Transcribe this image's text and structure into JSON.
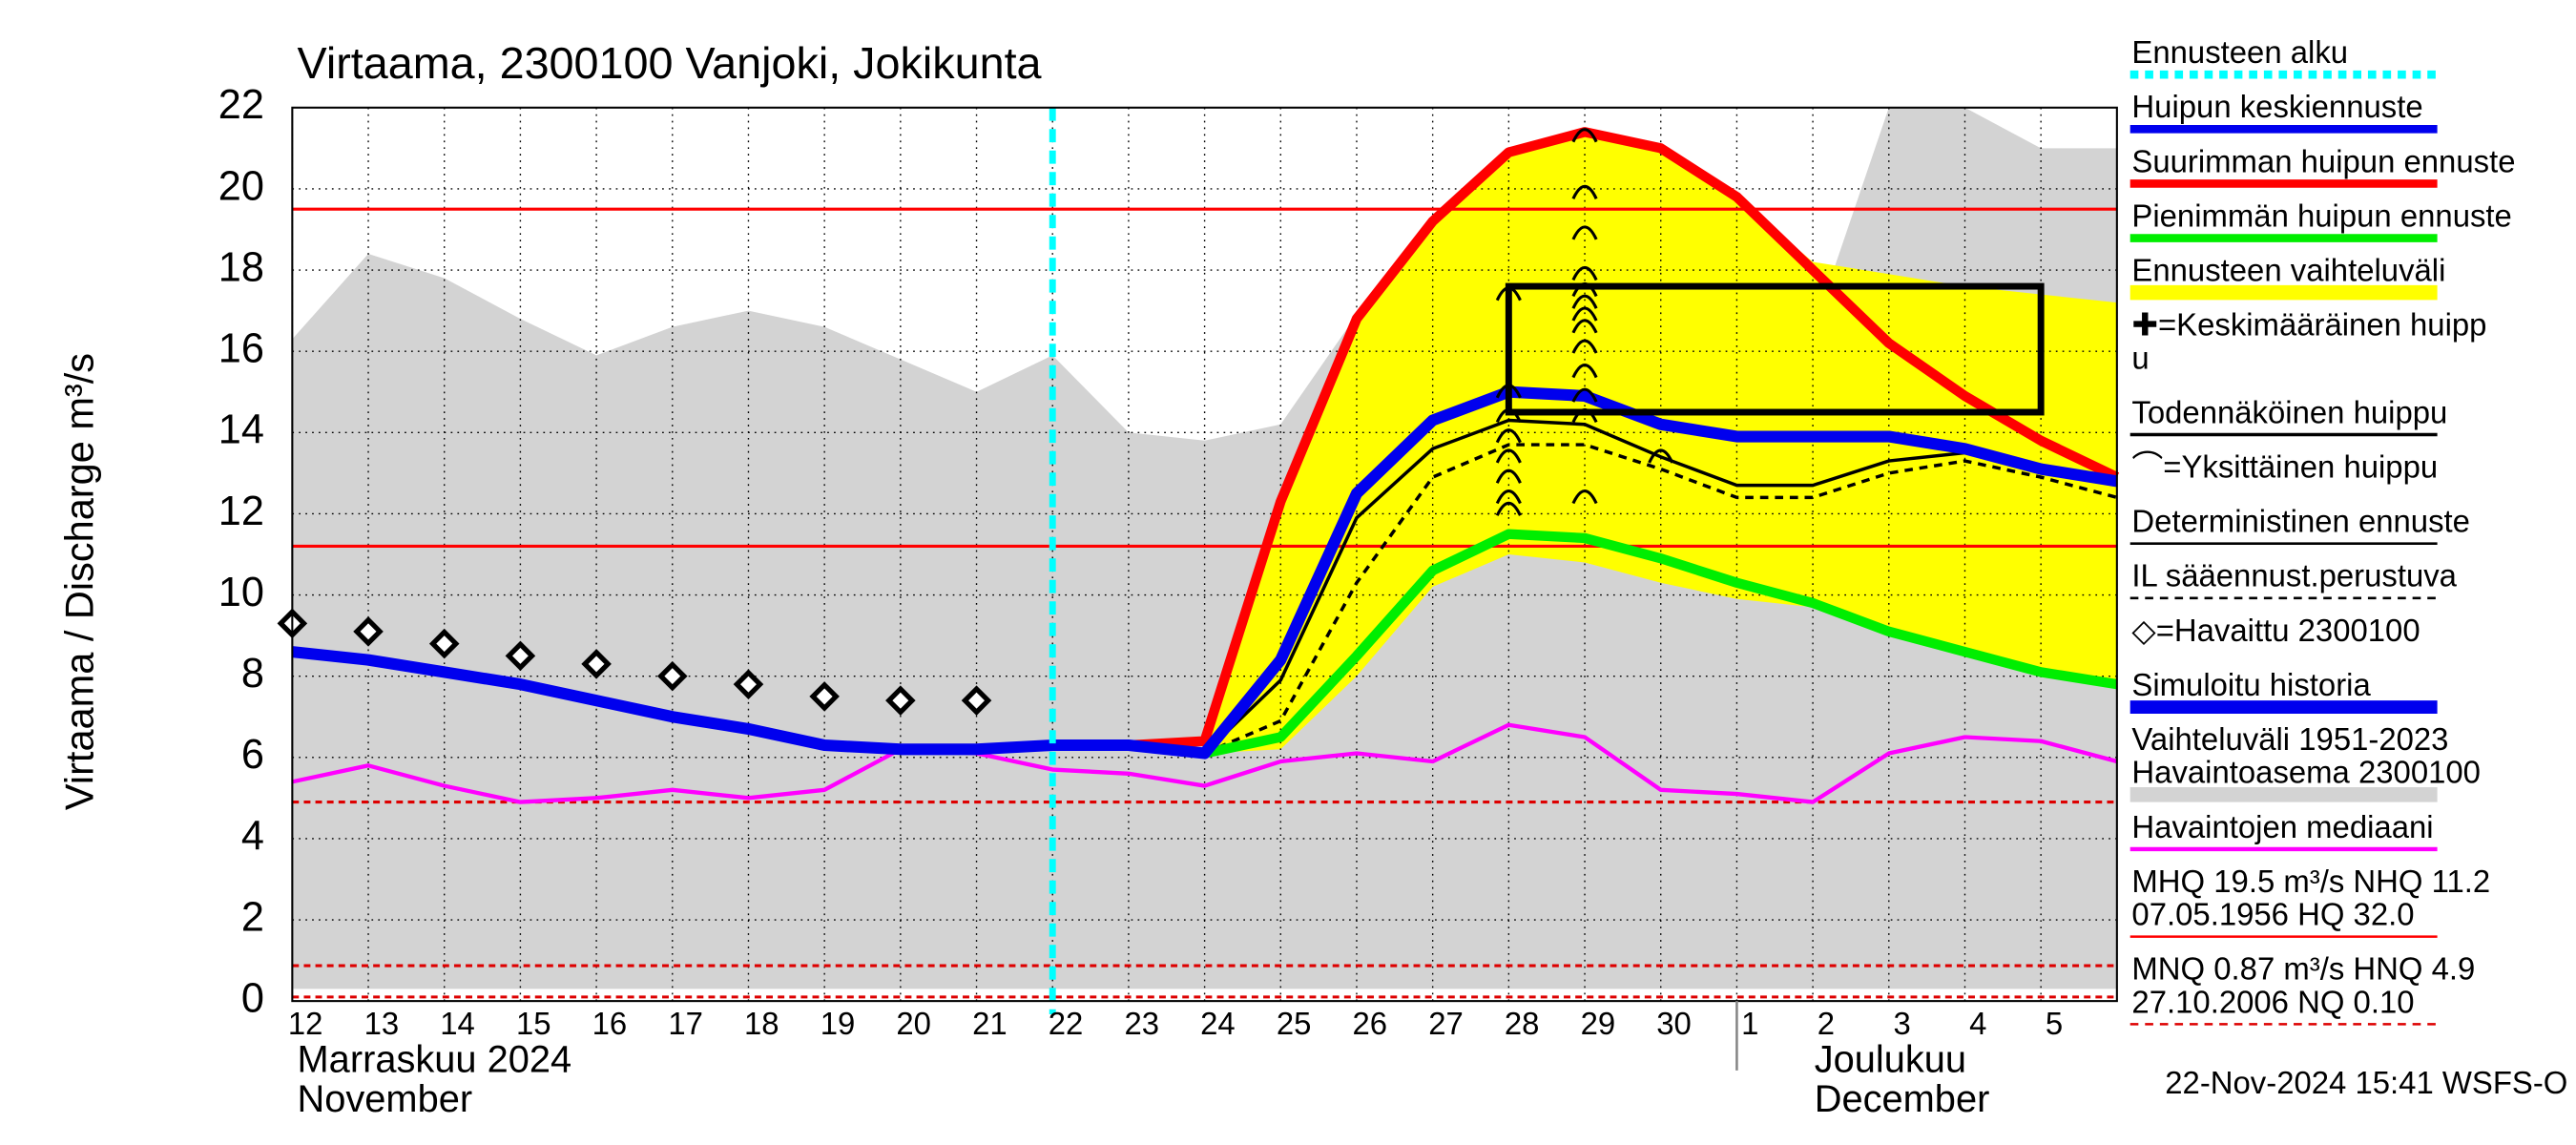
{
  "chart_data": {
    "type": "line",
    "title": "Virtaama, 2300100 Vanjoki, Jokikunta",
    "y_label": "Virtaama / Discharge   m³/s",
    "categories": [
      "12",
      "13",
      "14",
      "15",
      "16",
      "17",
      "18",
      "19",
      "20",
      "21",
      "22",
      "23",
      "24",
      "25",
      "26",
      "27",
      "28",
      "29",
      "30",
      "1",
      "2",
      "3",
      "4",
      "5",
      null
    ],
    "ylim": [
      0,
      22
    ],
    "yticks": [
      0,
      2,
      4,
      6,
      8,
      10,
      12,
      14,
      16,
      18,
      20,
      22
    ],
    "grid": true,
    "bands": [
      {
        "color": "#d3d3d3",
        "upper": [
          16.3,
          18.4,
          17.8,
          16.8,
          15.9,
          16.6,
          17.0,
          16.6,
          15.8,
          15.0,
          15.9,
          14.0,
          13.8,
          14.2,
          16.9,
          15.8,
          15.5,
          16.1,
          14.3,
          14.7,
          16.5,
          22,
          22,
          21,
          21
        ],
        "lower": [
          0.3,
          0.3,
          0.3,
          0.3,
          0.3,
          0.3,
          0.3,
          0.3,
          0.3,
          0.3,
          0.3,
          0.3,
          0.3,
          0.3,
          0.3,
          0.3,
          0.3,
          0.3,
          0.3,
          0.3,
          0.3,
          0.3,
          0.3,
          0.3,
          0.3
        ]
      },
      {
        "color": "#ffff00",
        "upper": [
          null,
          null,
          null,
          null,
          null,
          null,
          null,
          null,
          null,
          null,
          null,
          null,
          6.4,
          12.3,
          16.8,
          19.2,
          20.9,
          21.4,
          21.0,
          19.8,
          18.2,
          17.9,
          17.6,
          17.4,
          17.2
        ],
        "lower": [
          null,
          null,
          null,
          null,
          null,
          null,
          null,
          null,
          null,
          null,
          null,
          null,
          6.1,
          6.2,
          8.0,
          10.2,
          11.0,
          10.8,
          10.3,
          9.9,
          9.7,
          9.1,
          8.6,
          8.1,
          7.8
        ]
      }
    ],
    "reference_lines": [
      {
        "value": 19.5,
        "color": "#ff0000",
        "dashed": false
      },
      {
        "value": 11.2,
        "color": "#ff0000",
        "dashed": false
      },
      {
        "value": 4.9,
        "color": "#dd0000",
        "dashed": true
      },
      {
        "value": 0.87,
        "color": "#dd0000",
        "dashed": true
      },
      {
        "value": 0.1,
        "color": "#dd0000",
        "dashed": true
      }
    ],
    "series": [
      {
        "color": "#ff00ff",
        "width": 2.5,
        "dashed": false,
        "values": [
          5.4,
          5.8,
          5.3,
          4.9,
          5.0,
          5.2,
          5.0,
          5.2,
          6.2,
          6.1,
          5.7,
          5.6,
          5.3,
          5.9,
          6.1,
          5.9,
          6.8,
          6.5,
          5.2,
          5.1,
          4.9,
          6.1,
          6.5,
          6.4,
          5.9
        ]
      },
      {
        "color": "#000000",
        "width": 2,
        "dashed": true,
        "values": [
          null,
          null,
          null,
          null,
          null,
          null,
          null,
          null,
          null,
          null,
          null,
          null,
          6.1,
          6.9,
          10.3,
          12.9,
          13.7,
          13.7,
          13.1,
          12.4,
          12.4,
          13.0,
          13.3,
          12.9,
          12.4
        ]
      },
      {
        "color": "#000000",
        "width": 2,
        "dashed": false,
        "values": [
          null,
          null,
          null,
          null,
          null,
          null,
          null,
          null,
          null,
          null,
          null,
          null,
          6.1,
          7.9,
          11.9,
          13.6,
          14.3,
          14.2,
          13.4,
          12.7,
          12.7,
          13.3,
          13.5,
          13.2,
          12.8
        ]
      },
      {
        "color": "#00ee00",
        "width": 6,
        "dashed": false,
        "values": [
          null,
          null,
          null,
          null,
          null,
          null,
          null,
          null,
          null,
          null,
          null,
          null,
          6.1,
          6.5,
          8.5,
          10.6,
          11.5,
          11.4,
          10.9,
          10.3,
          9.8,
          9.1,
          8.6,
          8.1,
          7.8
        ]
      },
      {
        "color": "#ff0000",
        "width": 6,
        "dashed": false,
        "values": [
          null,
          null,
          null,
          null,
          null,
          null,
          null,
          null,
          null,
          null,
          6.3,
          6.3,
          6.4,
          12.3,
          16.8,
          19.2,
          20.9,
          21.4,
          21.0,
          19.8,
          18.0,
          16.2,
          14.9,
          13.8,
          12.9
        ]
      },
      {
        "color": "#0000ee",
        "width": 7,
        "dashed": false,
        "values": [
          8.6,
          8.4,
          8.1,
          7.8,
          7.4,
          7.0,
          6.7,
          6.3,
          6.2,
          6.2,
          6.3,
          6.3,
          6.1,
          8.4,
          12.5,
          14.3,
          15.0,
          14.9,
          14.2,
          13.9,
          13.9,
          13.9,
          13.6,
          13.1,
          12.8
        ]
      }
    ],
    "observed": {
      "color": "#000000",
      "values": [
        9.3,
        9.1,
        8.8,
        8.5,
        8.3,
        8.0,
        7.8,
        7.5,
        7.4,
        7.4,
        null,
        null,
        null,
        null,
        null,
        null,
        null,
        null,
        null,
        null,
        null,
        null,
        null,
        null,
        null
      ]
    },
    "peaks": {
      "x": [
        16,
        16,
        16,
        16,
        16,
        16,
        16,
        16,
        17,
        17,
        17,
        17,
        17,
        17,
        17,
        17,
        17,
        17,
        17,
        17,
        17,
        18
      ],
      "y": [
        17.5,
        15.1,
        14.5,
        14.0,
        13.5,
        13.0,
        12.5,
        12.2,
        21.4,
        20.0,
        19.0,
        18.0,
        17.6,
        17.3,
        17.0,
        16.7,
        16.2,
        15.6,
        15.0,
        14.5,
        12.5,
        13.5
      ]
    },
    "probable_peak_box": {
      "xlim": [
        16,
        23
      ],
      "ylim": [
        14.5,
        17.6
      ]
    },
    "forecast_start": 10,
    "month_labels": [
      {
        "x": 0,
        "lines": [
          "Marraskuu 2024",
          "November"
        ]
      },
      {
        "x": 19,
        "lines": [
          "Joulukuu",
          "December"
        ]
      }
    ],
    "legend": [
      {
        "lines": [
          "Ennusteen alku"
        ],
        "color": "#00ffff",
        "width": 5,
        "dashed": true
      },
      {
        "lines": [
          "Huipun keskiennuste"
        ],
        "color": "#0000ee",
        "width": 5,
        "dashed": false
      },
      {
        "lines": [
          "Suurimman huipun ennuste"
        ],
        "color": "#ff0000",
        "width": 5,
        "dashed": false
      },
      {
        "lines": [
          "Pienimmän huipun ennuste"
        ],
        "color": "#00ee00",
        "width": 5,
        "dashed": false
      },
      {
        "lines": [
          "Ennusteen vaihteluväli"
        ],
        "color": "#ffff00",
        "width": 9,
        "dashed": false
      },
      {
        "lines": [
          "✚=Keskimääräinen huipp",
          "u"
        ]
      },
      {
        "lines": [
          "Todennäköinen huippu"
        ],
        "color": "#000000",
        "width": 2,
        "dashed": false
      },
      {
        "lines": [
          "⌒=Yksittäinen huippu"
        ]
      },
      {
        "lines": [
          "Deterministinen ennuste"
        ],
        "color": "#000000",
        "width": 1.5,
        "dashed": false
      },
      {
        "lines": [
          "IL sääennust.perustuva"
        ],
        "color": "#000000",
        "width": 1.5,
        "dashed": true
      },
      {
        "lines": [
          "◇=Havaittu 2300100"
        ]
      },
      {
        "lines": [
          "Simuloitu historia"
        ],
        "color": "#0000ee",
        "width": 8,
        "dashed": false
      },
      {
        "lines": [
          "Vaihteluväli 1951-2023",
          " Havaintoasema 2300100"
        ],
        "color": "#d3d3d3",
        "width": 9,
        "dashed": false
      },
      {
        "lines": [
          "Havaintojen mediaani"
        ],
        "color": "#ff00ff",
        "width": 2.5,
        "dashed": false
      },
      {
        "lines": [
          "MHQ 19.5 m³/s NHQ 11.2",
          "07.05.1956 HQ 32.0"
        ],
        "color": "#ff0000",
        "width": 1.5,
        "dashed": false
      },
      {
        "lines": [
          "MNQ 0.87 m³/s HNQ  4.9",
          "27.10.2006 NQ 0.10"
        ],
        "color": "#dd0000",
        "width": 1.5,
        "dashed": true
      }
    ],
    "footer": "22-Nov-2024 15:41 WSFS-O"
  }
}
